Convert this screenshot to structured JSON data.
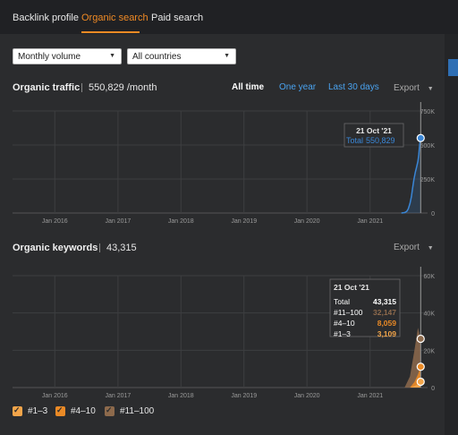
{
  "tabs": [
    {
      "label": "Backlink profile",
      "active": false
    },
    {
      "label": "Organic search",
      "active": true
    },
    {
      "label": "Paid search",
      "active": false
    }
  ],
  "filters": {
    "volume": "Monthly volume",
    "country": "All countries"
  },
  "traffic": {
    "title": "Organic traffic",
    "value": "550,829 /month",
    "ranges": [
      "All time",
      "One year",
      "Last 30 days"
    ],
    "active_range": "All time",
    "export_label": "Export",
    "tooltip": {
      "date": "21 Oct '21",
      "label": "Total",
      "value": "550,829"
    }
  },
  "keywords": {
    "title": "Organic keywords",
    "value": "43,315",
    "export_label": "Export",
    "tooltip": {
      "date": "21 Oct '21",
      "rows": [
        {
          "label": "Total",
          "value": "43,315"
        },
        {
          "label": "#11–100",
          "value": "32,147"
        },
        {
          "label": "#4–10",
          "value": "8,059"
        },
        {
          "label": "#1–3",
          "value": "3,109"
        }
      ]
    }
  },
  "legend": [
    {
      "label": "#1–3",
      "checked": true
    },
    {
      "label": "#4–10",
      "checked": true
    },
    {
      "label": "#11–100",
      "checked": true
    }
  ],
  "colors": {
    "accent": "#f08a24",
    "traffic_line": "#3a86d6",
    "kw_top3": "#f3a54a",
    "kw_4_10": "#ea8a26",
    "kw_11_100": "#8d6a4c"
  },
  "chart_data": [
    {
      "type": "area",
      "title": "Organic traffic",
      "x_ticks": [
        "Jan 2016",
        "Jan 2017",
        "Jan 2018",
        "Jan 2019",
        "Jan 2020",
        "Jan 2021"
      ],
      "y_ticks": [
        "0",
        "250K",
        "500K",
        "750K"
      ],
      "ylim": [
        0,
        750000
      ],
      "series": [
        {
          "name": "Total",
          "x": [
            "2021-07-01",
            "2021-07-20",
            "2021-08-01",
            "2021-08-10",
            "2021-08-20",
            "2021-08-28",
            "2021-09-05",
            "2021-09-12",
            "2021-09-20",
            "2021-09-28",
            "2021-10-05",
            "2021-10-10",
            "2021-10-15",
            "2021-10-21"
          ],
          "values": [
            0,
            3000,
            12000,
            30000,
            70000,
            120000,
            190000,
            250000,
            300000,
            340000,
            380000,
            430000,
            500000,
            550829
          ]
        }
      ],
      "grid": true
    },
    {
      "type": "area",
      "title": "Organic keywords",
      "x_ticks": [
        "Jan 2016",
        "Jan 2017",
        "Jan 2018",
        "Jan 2019",
        "Jan 2020",
        "Jan 2021"
      ],
      "y_ticks": [
        "0",
        "20K",
        "40K",
        "60K"
      ],
      "ylim": [
        0,
        60000
      ],
      "series": [
        {
          "name": "#1–3",
          "x": [
            "2021-08-01",
            "2021-09-15",
            "2021-10-21"
          ],
          "values": [
            0,
            1500,
            3109
          ]
        },
        {
          "name": "#4–10",
          "x": [
            "2021-08-01",
            "2021-09-15",
            "2021-10-21"
          ],
          "values": [
            0,
            4000,
            8059
          ]
        },
        {
          "name": "#11–100",
          "x": [
            "2021-07-20",
            "2021-08-20",
            "2021-09-15",
            "2021-10-05",
            "2021-10-21"
          ],
          "values": [
            0,
            5000,
            15000,
            24000,
            32147
          ]
        }
      ],
      "grid": true
    }
  ]
}
